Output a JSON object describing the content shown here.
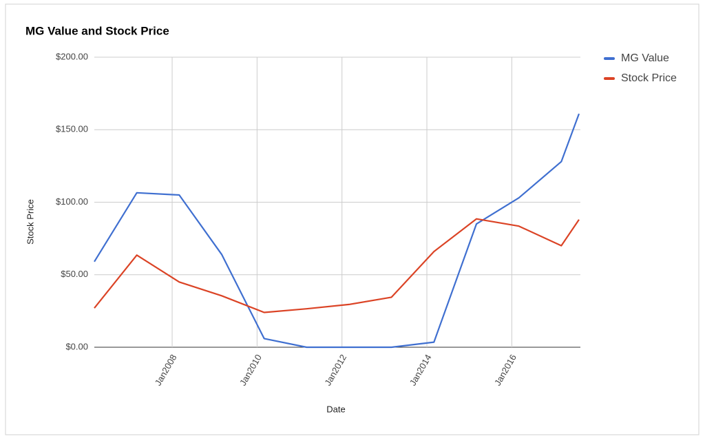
{
  "chart_data": {
    "type": "line",
    "title": "MG Value and Stock Price",
    "x_label": "Date",
    "y_label": "Stock Price",
    "x": [
      "2006-03",
      "2007-03",
      "2008-03",
      "2009-03",
      "2010-03",
      "2011-03",
      "2012-03",
      "2013-03",
      "2014-03",
      "2015-03",
      "2016-03",
      "2017-03",
      "2017-08"
    ],
    "series": [
      {
        "name": "MG Value",
        "color": "#3f6fd0",
        "values": [
          59,
          106.5,
          105,
          64,
          6,
          0,
          0,
          0,
          3.5,
          85,
          103,
          128,
          161
        ]
      },
      {
        "name": "Stock Price",
        "color": "#db4325",
        "values": [
          27,
          63.5,
          45,
          35.5,
          24,
          26.5,
          29.5,
          34.5,
          66,
          88.5,
          83.5,
          70,
          88
        ]
      }
    ],
    "xlim": [
      "2006-03",
      "2017-08"
    ],
    "xticks": [
      {
        "value": "2008-01",
        "label": "Jan2008"
      },
      {
        "value": "2010-01",
        "label": "Jan2010"
      },
      {
        "value": "2012-01",
        "label": "Jan2012"
      },
      {
        "value": "2014-01",
        "label": "Jan2014"
      },
      {
        "value": "2016-01",
        "label": "Jan2016"
      }
    ],
    "ylim": [
      0,
      200
    ],
    "yticks": [
      {
        "value": 0,
        "label": "$0.00"
      },
      {
        "value": 50,
        "label": "$50.00"
      },
      {
        "value": 100,
        "label": "$100.00"
      },
      {
        "value": 150,
        "label": "$150.00"
      },
      {
        "value": 200,
        "label": "$200.00"
      }
    ],
    "grid": true,
    "legend": "right"
  }
}
